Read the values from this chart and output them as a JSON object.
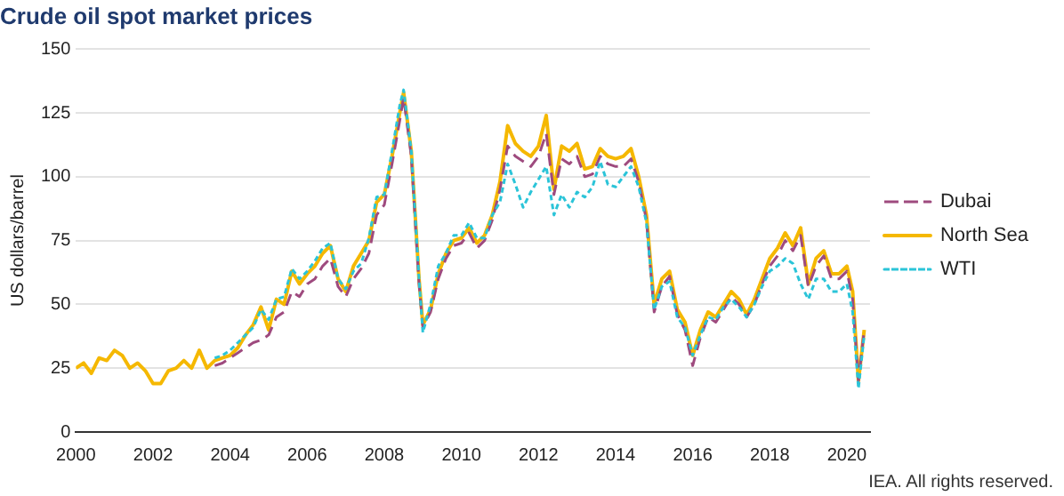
{
  "chart_data": {
    "type": "line",
    "title": "Crude oil spot market prices",
    "ylabel": "US dollars/barrel",
    "xlim": [
      2000,
      2020.6
    ],
    "xticks": [
      2000,
      2002,
      2004,
      2006,
      2008,
      2010,
      2012,
      2014,
      2016,
      2018,
      2020
    ],
    "ylim": [
      0,
      150
    ],
    "yticks": [
      0,
      25,
      50,
      75,
      100,
      125,
      150
    ],
    "grid": "y",
    "legend": "right",
    "marker": "none",
    "annotations": [
      "IEA. All rights reserved."
    ],
    "series": [
      {
        "name": "Dubai",
        "color": "#9e4a7e",
        "line_style": "dashed",
        "x": [
          2003.6,
          2003.8,
          2004,
          2004.2,
          2004.4,
          2004.6,
          2004.8,
          2005,
          2005.2,
          2005.4,
          2005.6,
          2005.8,
          2006,
          2006.2,
          2006.4,
          2006.6,
          2006.8,
          2007,
          2007.2,
          2007.4,
          2007.6,
          2007.8,
          2008,
          2008.2,
          2008.4,
          2008.5,
          2008.7,
          2008.9,
          2009,
          2009.2,
          2009.4,
          2009.6,
          2009.8,
          2010,
          2010.2,
          2010.4,
          2010.6,
          2010.8,
          2011,
          2011.2,
          2011.4,
          2011.6,
          2011.8,
          2012,
          2012.2,
          2012.4,
          2012.6,
          2012.8,
          2013,
          2013.2,
          2013.4,
          2013.6,
          2013.8,
          2014,
          2014.2,
          2014.4,
          2014.6,
          2014.8,
          2015,
          2015.2,
          2015.4,
          2015.6,
          2015.8,
          2016,
          2016.2,
          2016.4,
          2016.6,
          2016.8,
          2017,
          2017.2,
          2017.4,
          2017.6,
          2017.8,
          2018,
          2018.2,
          2018.4,
          2018.6,
          2018.8,
          2019,
          2019.2,
          2019.4,
          2019.6,
          2019.8,
          2020,
          2020.15,
          2020.3,
          2020.45
        ],
        "values": [
          26,
          27,
          29,
          31,
          33,
          35,
          36,
          38,
          45,
          47,
          55,
          53,
          58,
          60,
          65,
          68,
          57,
          53,
          60,
          64,
          70,
          85,
          89,
          105,
          122,
          131,
          108,
          58,
          41,
          47,
          60,
          68,
          73,
          74,
          78,
          72,
          75,
          83,
          95,
          112,
          108,
          106,
          104,
          108,
          117,
          93,
          107,
          105,
          108,
          100,
          101,
          108,
          105,
          104,
          104,
          107,
          98,
          83,
          47,
          57,
          61,
          46,
          40,
          26,
          37,
          45,
          43,
          48,
          53,
          50,
          45,
          50,
          58,
          65,
          69,
          75,
          71,
          77,
          57,
          65,
          69,
          60,
          60,
          63,
          52,
          20,
          40
        ]
      },
      {
        "name": "North Sea",
        "color": "#f5b800",
        "line_style": "solid",
        "x": [
          2000,
          2000.2,
          2000.4,
          2000.6,
          2000.8,
          2001,
          2001.2,
          2001.4,
          2001.6,
          2001.8,
          2002,
          2002.2,
          2002.4,
          2002.6,
          2002.8,
          2003,
          2003.2,
          2003.4,
          2003.6,
          2003.8,
          2004,
          2004.2,
          2004.4,
          2004.6,
          2004.8,
          2005,
          2005.2,
          2005.4,
          2005.6,
          2005.8,
          2006,
          2006.2,
          2006.4,
          2006.6,
          2006.8,
          2007,
          2007.2,
          2007.4,
          2007.6,
          2007.8,
          2008,
          2008.2,
          2008.4,
          2008.5,
          2008.7,
          2008.9,
          2009,
          2009.2,
          2009.4,
          2009.6,
          2009.8,
          2010,
          2010.2,
          2010.4,
          2010.6,
          2010.8,
          2011,
          2011.2,
          2011.4,
          2011.6,
          2011.8,
          2012,
          2012.2,
          2012.4,
          2012.6,
          2012.8,
          2013,
          2013.2,
          2013.4,
          2013.6,
          2013.8,
          2014,
          2014.2,
          2014.4,
          2014.6,
          2014.8,
          2015,
          2015.2,
          2015.4,
          2015.6,
          2015.8,
          2016,
          2016.2,
          2016.4,
          2016.6,
          2016.8,
          2017,
          2017.2,
          2017.4,
          2017.6,
          2017.8,
          2018,
          2018.2,
          2018.4,
          2018.6,
          2018.8,
          2019,
          2019.2,
          2019.4,
          2019.6,
          2019.8,
          2020,
          2020.15,
          2020.3,
          2020.45
        ],
        "values": [
          25,
          27,
          23,
          29,
          28,
          32,
          30,
          25,
          27,
          24,
          19,
          19,
          24,
          25,
          28,
          25,
          32,
          25,
          28,
          29,
          30,
          33,
          38,
          42,
          49,
          40,
          52,
          50,
          63,
          58,
          62,
          65,
          70,
          73,
          60,
          55,
          65,
          70,
          75,
          90,
          93,
          108,
          125,
          133,
          110,
          60,
          42,
          48,
          62,
          70,
          75,
          76,
          80,
          74,
          77,
          85,
          98,
          120,
          113,
          110,
          108,
          112,
          124,
          95,
          112,
          110,
          113,
          103,
          104,
          111,
          108,
          107,
          108,
          111,
          100,
          85,
          50,
          60,
          63,
          48,
          43,
          30,
          40,
          47,
          45,
          50,
          55,
          52,
          46,
          52,
          60,
          68,
          72,
          78,
          73,
          80,
          58,
          68,
          71,
          62,
          62,
          65,
          55,
          20,
          40
        ]
      },
      {
        "name": "WTI",
        "color": "#2bc4d8",
        "line_style": "dotted",
        "x": [
          2003.6,
          2003.8,
          2004,
          2004.2,
          2004.4,
          2004.6,
          2004.8,
          2005,
          2005.2,
          2005.4,
          2005.6,
          2005.8,
          2006,
          2006.2,
          2006.4,
          2006.6,
          2006.8,
          2007,
          2007.2,
          2007.4,
          2007.6,
          2007.8,
          2008,
          2008.2,
          2008.4,
          2008.5,
          2008.7,
          2008.9,
          2009,
          2009.2,
          2009.4,
          2009.6,
          2009.8,
          2010,
          2010.2,
          2010.4,
          2010.6,
          2010.8,
          2011,
          2011.2,
          2011.4,
          2011.6,
          2011.8,
          2012,
          2012.2,
          2012.4,
          2012.6,
          2012.8,
          2013,
          2013.2,
          2013.4,
          2013.6,
          2013.8,
          2014,
          2014.2,
          2014.4,
          2014.6,
          2014.8,
          2015,
          2015.2,
          2015.4,
          2015.6,
          2015.8,
          2016,
          2016.2,
          2016.4,
          2016.6,
          2016.8,
          2017,
          2017.2,
          2017.4,
          2017.6,
          2017.8,
          2018,
          2018.2,
          2018.4,
          2018.6,
          2018.8,
          2019,
          2019.2,
          2019.4,
          2019.6,
          2019.8,
          2020,
          2020.15,
          2020.3,
          2020.45
        ],
        "values": [
          29,
          30,
          32,
          35,
          38,
          41,
          48,
          44,
          52,
          53,
          64,
          60,
          63,
          67,
          72,
          74,
          60,
          56,
          63,
          66,
          76,
          92,
          93,
          110,
          128,
          134,
          110,
          60,
          39,
          50,
          65,
          70,
          77,
          77,
          82,
          76,
          76,
          85,
          90,
          105,
          97,
          88,
          94,
          99,
          104,
          85,
          93,
          88,
          94,
          92,
          96,
          106,
          97,
          96,
          100,
          104,
          96,
          82,
          48,
          57,
          59,
          45,
          41,
          30,
          38,
          45,
          44,
          49,
          52,
          49,
          45,
          50,
          57,
          63,
          65,
          68,
          66,
          58,
          52,
          60,
          60,
          55,
          55,
          58,
          47,
          17,
          38
        ]
      }
    ]
  }
}
